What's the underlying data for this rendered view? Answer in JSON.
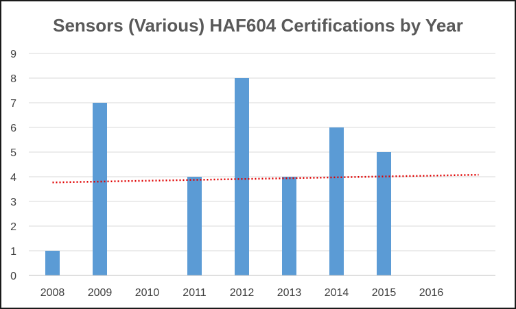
{
  "chart_data": {
    "type": "bar",
    "title": "Sensors (Various) HAF604 Certifications by Year",
    "xlabel": "",
    "ylabel": "",
    "categories": [
      "2008",
      "2009",
      "2010",
      "2011",
      "2012",
      "2013",
      "2014",
      "2015",
      "2016"
    ],
    "values": [
      1,
      7,
      0,
      4,
      8,
      4,
      6,
      5,
      0
    ],
    "ylim": [
      0,
      9
    ],
    "yticks": [
      "0",
      "1",
      "2",
      "3",
      "4",
      "5",
      "6",
      "7",
      "8",
      "9"
    ],
    "grid": true,
    "legend": "none",
    "trendline": {
      "type": "linear",
      "start_value": 3.77,
      "end_value": 4.08
    },
    "colors": {
      "bar": "#5b9bd5",
      "trendline": "#e00000",
      "grid": "#d9d9d9",
      "axis": "#bfbfbf",
      "text": "#404040",
      "title": "#595959"
    }
  }
}
